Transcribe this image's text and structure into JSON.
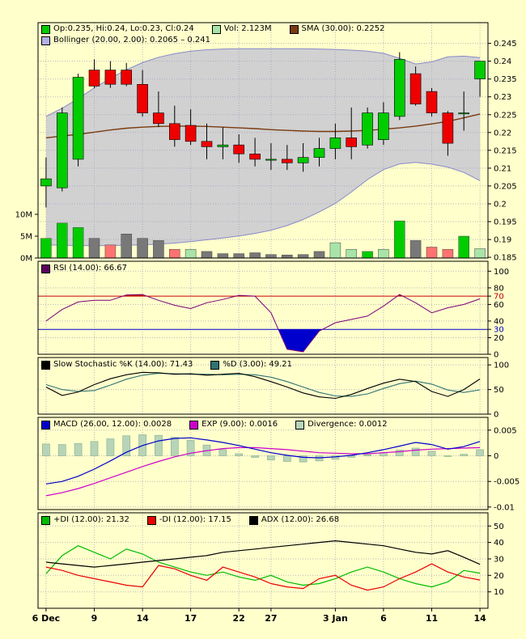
{
  "panels": {
    "main": {
      "legend": [
        {
          "color": "#00CC00",
          "label": "Op:0.235, Hi:0.24, Lo:0.23, Cl:0.24"
        },
        {
          "color": "#A8E4A8",
          "label": "Vol: 2.123M"
        },
        {
          "color": "#7A3A10",
          "label": "SMA (30.00): 0.2252"
        }
      ],
      "legend2": [
        {
          "color": "#B0B0E4",
          "label": "Bollinger (20.00, 2.00): 0.2065 – 0.241"
        }
      ]
    },
    "rsi": {
      "legend": [
        {
          "color": "#5E005E",
          "label": "RSI (14.00): 66.67"
        }
      ]
    },
    "stoch": {
      "legend": [
        {
          "color": "#000000",
          "label": "Slow Stochastic %K (14.00): 71.43"
        },
        {
          "color": "#2F7373",
          "label": "%D (3.00): 49.21"
        }
      ]
    },
    "macd": {
      "legend": [
        {
          "color": "#0000CC",
          "label": "MACD (26.00, 12.00): 0.0028"
        },
        {
          "color": "#CC00CC",
          "label": "EXP (9.00): 0.0016"
        },
        {
          "color": "#B8D4B8",
          "label": "Divergence: 0.0012"
        }
      ]
    },
    "dmi": {
      "legend": [
        {
          "color": "#00BB00",
          "label": "+DI (12.00): 21.32"
        },
        {
          "color": "#E80000",
          "label": "-DI (12.00): 17.15"
        },
        {
          "color": "#000000",
          "label": "ADX (12.00): 26.68"
        }
      ]
    }
  },
  "chart_data": {
    "type": "candlestick+indicators",
    "colors": {
      "background": "#FFFFCC",
      "candle_up": "#00CC00",
      "candle_down": "#EE0000",
      "sma": "#7A3A10",
      "bollinger_fill": "#9898D8",
      "bollinger_edge": "#8888CC",
      "vol_green": "#00CC00",
      "vol_palegreen": "#A8E4A8",
      "vol_gray": "#787878",
      "vol_red": "#FF7272",
      "rsi_line": "#7A007A",
      "overbought_line": "#CC0000",
      "oversold_line": "#0000CC",
      "overbought_fill": "#CC0000",
      "oversold_fill": "#0000CC",
      "stoch_k": "#000000",
      "stoch_d": "#2F7373",
      "macd_line": "#0000CC",
      "exp_line": "#CC00CC",
      "divergence_fill": "#B8D4B8",
      "divergence_edge": "#8FB48F",
      "plus_di": "#00BB00",
      "minus_di": "#E80000",
      "adx": "#000000"
    },
    "x_tick_labels": [
      {
        "i": 0,
        "t": "6 Dec"
      },
      {
        "i": 3,
        "t": "9"
      },
      {
        "i": 6,
        "t": "14"
      },
      {
        "i": 9,
        "t": "17"
      },
      {
        "i": 12,
        "t": "22"
      },
      {
        "i": 14,
        "t": "27"
      },
      {
        "i": 18,
        "t": "3 Jan"
      },
      {
        "i": 21,
        "t": "6"
      },
      {
        "i": 24,
        "t": "11"
      },
      {
        "i": 27,
        "t": "14"
      }
    ],
    "price": {
      "ylim": [
        0.1848,
        0.2508
      ],
      "ticks": [
        {
          "v": 0.245,
          "t": "0.245"
        },
        {
          "v": 0.24,
          "t": "0.24"
        },
        {
          "v": 0.235,
          "t": "0.235"
        },
        {
          "v": 0.23,
          "t": "0.23"
        },
        {
          "v": 0.225,
          "t": "0.225"
        },
        {
          "v": 0.22,
          "t": "0.22"
        },
        {
          "v": 0.215,
          "t": "0.215"
        },
        {
          "v": 0.21,
          "t": "0.21"
        },
        {
          "v": 0.205,
          "t": "0.205"
        },
        {
          "v": 0.2,
          "t": "0.2"
        },
        {
          "v": 0.195,
          "t": "0.195"
        },
        {
          "v": 0.19,
          "t": "0.19"
        },
        {
          "v": 0.185,
          "t": "0.185"
        }
      ],
      "candles": {
        "open": [
          0.205,
          0.2045,
          0.2125,
          0.2375,
          0.2375,
          0.2375,
          0.2335,
          0.2255,
          0.2225,
          0.222,
          0.2175,
          0.216,
          0.2165,
          0.214,
          0.2125,
          0.2125,
          0.2115,
          0.213,
          0.2155,
          0.2185,
          0.2165,
          0.218,
          0.2245,
          0.2365,
          0.2315,
          0.2255,
          0.2255,
          0.235
        ],
        "high": [
          0.213,
          0.227,
          0.2365,
          0.2405,
          0.24,
          0.2395,
          0.2375,
          0.2315,
          0.2275,
          0.2265,
          0.2225,
          0.2215,
          0.2195,
          0.2185,
          0.217,
          0.2165,
          0.217,
          0.2185,
          0.2225,
          0.227,
          0.227,
          0.2285,
          0.2425,
          0.2385,
          0.2325,
          0.226,
          0.2315,
          0.24
        ],
        "low": [
          0.199,
          0.2035,
          0.2105,
          0.2325,
          0.2325,
          0.233,
          0.2245,
          0.2215,
          0.216,
          0.2165,
          0.2125,
          0.2125,
          0.2115,
          0.2105,
          0.2095,
          0.2095,
          0.209,
          0.2105,
          0.2125,
          0.2125,
          0.2155,
          0.2165,
          0.2235,
          0.2275,
          0.2245,
          0.2135,
          0.2205,
          0.23
        ],
        "close": [
          0.207,
          0.2255,
          0.2355,
          0.233,
          0.2335,
          0.2335,
          0.2255,
          0.2225,
          0.218,
          0.2175,
          0.216,
          0.2165,
          0.214,
          0.2125,
          0.2125,
          0.2115,
          0.213,
          0.2155,
          0.2185,
          0.216,
          0.2255,
          0.2255,
          0.2405,
          0.228,
          0.2255,
          0.217,
          0.2255,
          0.24
        ]
      },
      "sma30": [
        0.2185,
        0.219,
        0.2195,
        0.2201,
        0.2207,
        0.2212,
        0.2215,
        0.2217,
        0.2218,
        0.2218,
        0.2217,
        0.2215,
        0.2213,
        0.2211,
        0.2208,
        0.2206,
        0.2204,
        0.2203,
        0.2203,
        0.2204,
        0.2206,
        0.2209,
        0.2213,
        0.2218,
        0.2224,
        0.2231,
        0.2241,
        0.2252
      ],
      "bollinger": {
        "upper": [
          0.2245,
          0.2268,
          0.2295,
          0.2325,
          0.2352,
          0.2376,
          0.2396,
          0.2411,
          0.2421,
          0.2428,
          0.2432,
          0.2434,
          0.2435,
          0.2435,
          0.2435,
          0.2435,
          0.2435,
          0.2434,
          0.2433,
          0.2431,
          0.2428,
          0.2422,
          0.2408,
          0.2392,
          0.2398,
          0.2412,
          0.2414,
          0.241
        ],
        "lower": [
          0.1885,
          0.1884,
          0.1883,
          0.1883,
          0.1883,
          0.1884,
          0.1885,
          0.1887,
          0.189,
          0.1894,
          0.1899,
          0.1904,
          0.191,
          0.1917,
          0.1926,
          0.1939,
          0.1956,
          0.1977,
          0.2001,
          0.2033,
          0.2068,
          0.2096,
          0.2112,
          0.2116,
          0.2111,
          0.2103,
          0.2088,
          0.2065
        ]
      }
    },
    "volume": {
      "unit": "M",
      "ticks": [
        {
          "v": 10,
          "t": "10M"
        },
        {
          "v": 5,
          "t": "5M"
        },
        {
          "v": 0,
          "t": "0M"
        }
      ],
      "values": [
        4.5,
        8,
        7,
        4.5,
        3,
        5.5,
        4.5,
        4,
        2,
        2,
        1.5,
        1,
        1,
        1.2,
        0.8,
        0.7,
        0.8,
        1.5,
        3.5,
        2,
        1.5,
        2,
        8.5,
        4,
        2.5,
        2,
        5,
        2.123
      ],
      "colors": [
        "vol_green",
        "vol_green",
        "vol_green",
        "vol_gray",
        "vol_red",
        "vol_gray",
        "vol_gray",
        "vol_gray",
        "vol_red",
        "vol_palegreen",
        "vol_gray",
        "vol_gray",
        "vol_gray",
        "vol_gray",
        "vol_gray",
        "vol_gray",
        "vol_gray",
        "vol_gray",
        "vol_palegreen",
        "vol_palegreen",
        "vol_green",
        "vol_palegreen",
        "vol_green",
        "vol_gray",
        "vol_red",
        "vol_red",
        "vol_green",
        "vol_palegreen"
      ]
    },
    "rsi": {
      "ylim": [
        0,
        112
      ],
      "overbought": 70,
      "oversold": 30,
      "ticks": [
        {
          "v": 100,
          "t": "100"
        },
        {
          "v": 80,
          "t": "80"
        },
        {
          "v": 70,
          "t": "70",
          "color": "#C00000",
          "line_color": "#CC0000"
        },
        {
          "v": 60,
          "t": "60"
        },
        {
          "v": 40,
          "t": "40"
        },
        {
          "v": 30,
          "t": "30",
          "color": "#0000C0",
          "line_color": "#0000CC"
        },
        {
          "v": 20,
          "t": "20"
        },
        {
          "v": 0,
          "t": "0"
        }
      ],
      "values": [
        40,
        54,
        63,
        65,
        65,
        71.5,
        72,
        65,
        59,
        55,
        62,
        66,
        71,
        70,
        50,
        6,
        3,
        28,
        38,
        42,
        46,
        58,
        72,
        62,
        50,
        56,
        60,
        66.67
      ]
    },
    "stochastic": {
      "ylim": [
        0,
        115
      ],
      "ticks": [
        {
          "v": 100,
          "t": "100"
        },
        {
          "v": 50,
          "t": "50"
        },
        {
          "v": 0,
          "t": "0"
        }
      ],
      "k": [
        55,
        38,
        45,
        60,
        72,
        80,
        85,
        84,
        81,
        82,
        79,
        81,
        83,
        76,
        66,
        55,
        43,
        35,
        32,
        40,
        52,
        63,
        71,
        66,
        46,
        36,
        50,
        71.43
      ],
      "d": [
        60,
        50,
        46,
        48,
        59,
        71,
        79,
        83,
        82,
        81,
        81,
        80,
        81,
        80,
        75,
        66,
        55,
        44,
        37,
        36,
        41,
        52,
        62,
        67,
        61,
        49,
        44,
        49.21
      ]
    },
    "macd": {
      "ylim": [
        -0.0105,
        0.0075
      ],
      "ticks": [
        {
          "v": 0.005,
          "t": "0.005"
        },
        {
          "v": 0,
          "t": "0"
        },
        {
          "v": -0.005,
          "t": "-0.005"
        },
        {
          "v": -0.01,
          "t": "-0.01"
        }
      ],
      "macd": [
        -0.0055,
        -0.005,
        -0.004,
        -0.0026,
        -0.001,
        0.0007,
        0.002,
        0.0029,
        0.0034,
        0.0035,
        0.0031,
        0.0026,
        0.002,
        0.0013,
        0.0006,
        0.0001,
        -0.0003,
        -0.0004,
        -0.0002,
        0.0001,
        0.0006,
        0.0012,
        0.0019,
        0.0026,
        0.0022,
        0.0013,
        0.0018,
        0.0028
      ],
      "signal": [
        -0.0078,
        -0.0072,
        -0.0064,
        -0.0054,
        -0.0043,
        -0.0032,
        -0.0021,
        -0.0011,
        -0.0002,
        0.0005,
        0.001,
        0.0014,
        0.0016,
        0.0016,
        0.0014,
        0.0012,
        0.0009,
        0.0006,
        0.0005,
        0.0004,
        0.0004,
        0.0006,
        0.0008,
        0.0011,
        0.0013,
        0.0014,
        0.0015,
        0.0016
      ],
      "divergence": [
        0.0023,
        0.0022,
        0.0024,
        0.0028,
        0.0033,
        0.0039,
        0.0041,
        0.004,
        0.0036,
        0.003,
        0.0021,
        0.0012,
        0.0004,
        -0.0003,
        -0.0008,
        -0.0011,
        -0.0012,
        -0.001,
        -0.0007,
        -0.0003,
        0.0002,
        0.0006,
        0.0011,
        0.0015,
        0.0009,
        -0.0001,
        0.0003,
        0.0012
      ]
    },
    "dmi": {
      "ylim": [
        0,
        58
      ],
      "ticks": [
        {
          "v": 50,
          "t": "50"
        },
        {
          "v": 40,
          "t": "40"
        },
        {
          "v": 30,
          "t": "30"
        },
        {
          "v": 20,
          "t": "20"
        },
        {
          "v": 10,
          "t": "10"
        }
      ],
      "plus_di": [
        21,
        32,
        38,
        34,
        30,
        36,
        33,
        28,
        25,
        22,
        20,
        22,
        19,
        17,
        20,
        16,
        14,
        15,
        18,
        22,
        25,
        22,
        18,
        15,
        13,
        16,
        23,
        21.32
      ],
      "minus_di": [
        25,
        23,
        20,
        18,
        16,
        14,
        13,
        26,
        24,
        20,
        17,
        25,
        22,
        19,
        15,
        13,
        12,
        18,
        20,
        14,
        11,
        13,
        18,
        22,
        27,
        22,
        19,
        17.15
      ],
      "adx": [
        28,
        27,
        26,
        25,
        26,
        27,
        28,
        29,
        30,
        31,
        32,
        34,
        35,
        36,
        37,
        38,
        39,
        40,
        41,
        40,
        39,
        38,
        36,
        34,
        33,
        35,
        31,
        26.68
      ]
    }
  }
}
